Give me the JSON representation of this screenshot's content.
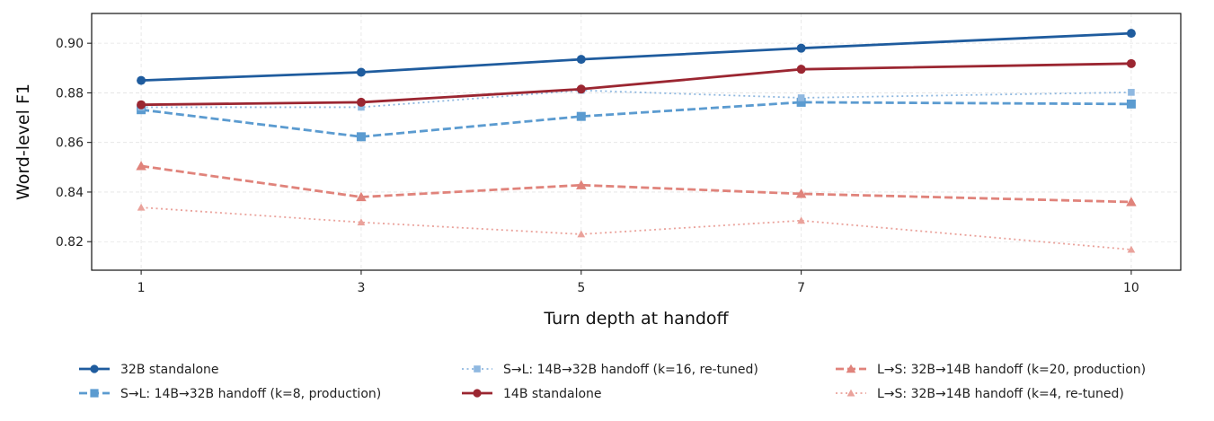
{
  "chart_data": {
    "type": "line",
    "title": "",
    "xlabel": "Turn depth at handoff",
    "ylabel": "Word-level F1",
    "x": [
      1,
      3,
      5,
      7,
      10
    ],
    "xticks": [
      "1",
      "3",
      "5",
      "7",
      "10"
    ],
    "xlim": [
      0.55,
      10.45
    ],
    "ylim": [
      0.8085,
      0.912
    ],
    "yticks": [
      "0.82",
      "0.84",
      "0.86",
      "0.88",
      "0.90"
    ],
    "ytick_values": [
      0.82,
      0.84,
      0.86,
      0.88,
      0.9
    ],
    "grid": true,
    "legend": "below-center",
    "series": [
      {
        "name": "32B standalone",
        "color": "#1f5c9e",
        "dash": "solid",
        "marker": "circle",
        "values": [
          0.885,
          0.8883,
          0.8935,
          0.898,
          0.904
        ]
      },
      {
        "name": "S→L: 14B→32B handoff (k=8, production)",
        "color": "#5b9bd0",
        "dash": "dashed",
        "marker": "square",
        "values": [
          0.8732,
          0.8623,
          0.8705,
          0.8762,
          0.8755
        ]
      },
      {
        "name": "S→L: 14B→32B handoff (k=16, re-tuned)",
        "color": "#8fb8e0",
        "dash": "dotted",
        "marker": "square",
        "values": [
          0.8742,
          0.8742,
          0.881,
          0.878,
          0.8802
        ]
      },
      {
        "name": "14B standalone",
        "color": "#9b2631",
        "dash": "solid",
        "marker": "circle",
        "values": [
          0.8752,
          0.8762,
          0.8815,
          0.8895,
          0.8918
        ]
      },
      {
        "name": "L→S: 32B→14B handoff (k=20, production)",
        "color": "#e0837b",
        "dash": "dashed",
        "marker": "triangle",
        "values": [
          0.8505,
          0.838,
          0.8428,
          0.8393,
          0.836
        ]
      },
      {
        "name": "L→S: 32B→14B handoff (k=4, re-tuned)",
        "color": "#eaa29b",
        "dash": "dotted",
        "marker": "triangle",
        "values": [
          0.8338,
          0.8278,
          0.823,
          0.8285,
          0.8168
        ]
      }
    ]
  }
}
